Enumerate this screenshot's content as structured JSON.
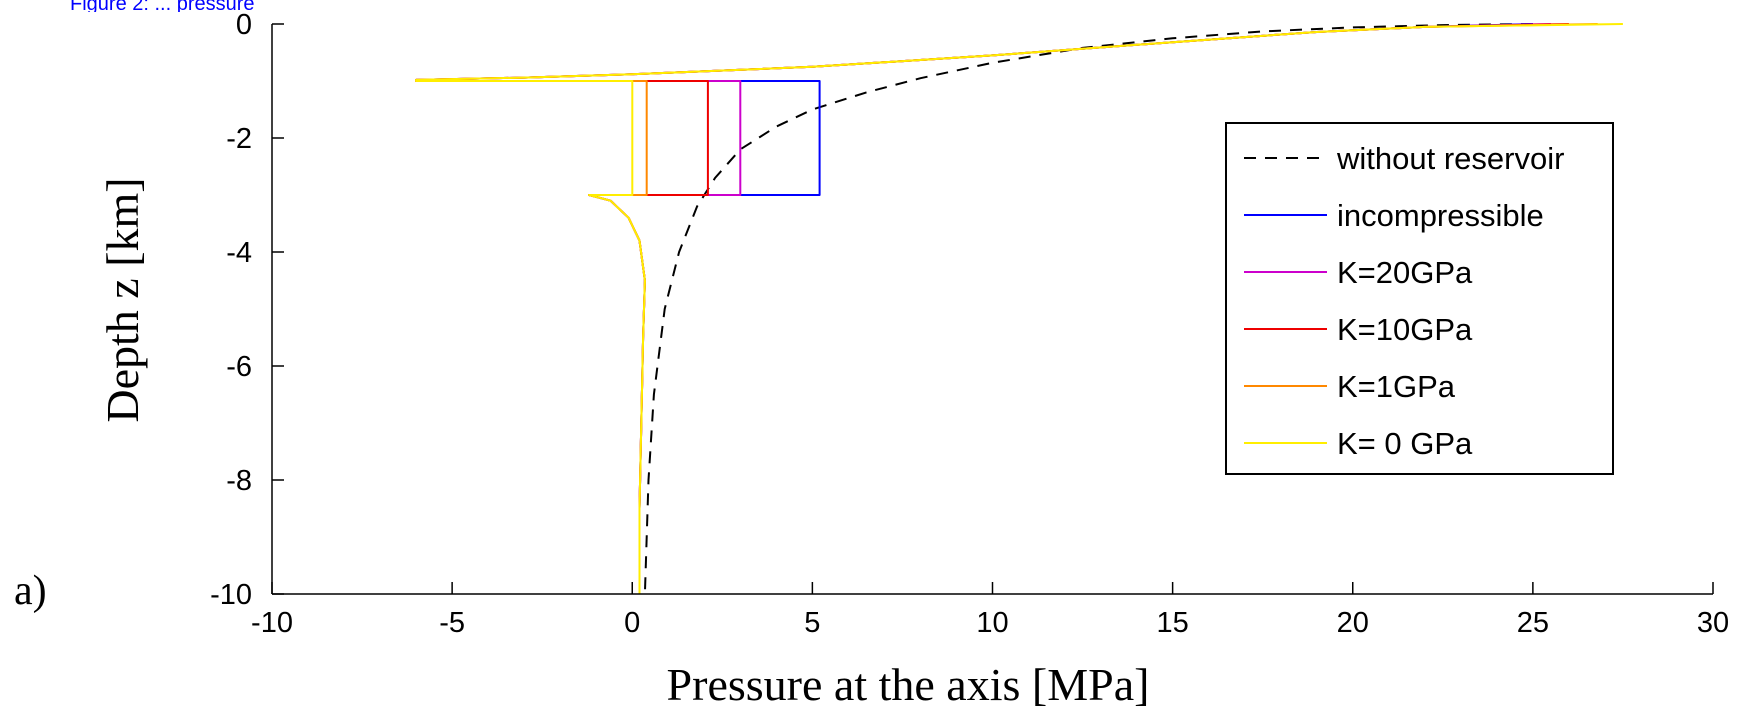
{
  "panel_label": "a)",
  "top_note": {
    "text": "Figure 2: ... pressure",
    "color": "#0000ff"
  },
  "chart_data": {
    "type": "line",
    "title": "",
    "xlabel": "Pressure at the axis [MPa]",
    "ylabel": "Depth z [km]",
    "xlim": [
      -10,
      30
    ],
    "ylim": [
      -10,
      0
    ],
    "xticks": [
      -10,
      -5,
      0,
      5,
      10,
      15,
      20,
      25,
      30
    ],
    "yticks": [
      0,
      -2,
      -4,
      -6,
      -8,
      -10
    ],
    "xtick_labels": [
      "-10",
      "-5",
      "0",
      "5",
      "10",
      "15",
      "20",
      "25",
      "30"
    ],
    "ytick_labels": [
      "0",
      "-2",
      "-4",
      "-6",
      "-8",
      "-10"
    ],
    "grid": false,
    "legend_position": "right",
    "series": [
      {
        "name": "without reservoir",
        "color": "#000000",
        "dash": true,
        "points": [
          [
            25.0,
            0
          ],
          [
            22.5,
            -0.02
          ],
          [
            20.0,
            -0.06
          ],
          [
            17.5,
            -0.13
          ],
          [
            15.0,
            -0.25
          ],
          [
            12.5,
            -0.42
          ],
          [
            10.0,
            -0.68
          ],
          [
            8.0,
            -0.95
          ],
          [
            6.5,
            -1.2
          ],
          [
            5.0,
            -1.5
          ],
          [
            4.0,
            -1.8
          ],
          [
            3.0,
            -2.2
          ],
          [
            2.3,
            -2.7
          ],
          [
            1.8,
            -3.2
          ],
          [
            1.3,
            -4.0
          ],
          [
            0.9,
            -5.0
          ],
          [
            0.6,
            -6.5
          ],
          [
            0.45,
            -8.0
          ],
          [
            0.35,
            -10.0
          ]
        ]
      },
      {
        "name": "incompressible",
        "color": "#0000ff",
        "dash": false,
        "points": [
          [
            25.0,
            0
          ],
          [
            22.0,
            -0.05
          ],
          [
            19.0,
            -0.14
          ],
          [
            15.0,
            -0.32
          ],
          [
            10.0,
            -0.55
          ],
          [
            5.0,
            -0.75
          ],
          [
            0.0,
            -0.88
          ],
          [
            -3.0,
            -0.94
          ],
          [
            -6.0,
            -0.98
          ],
          [
            -6.0,
            -1.0
          ],
          [
            5.2,
            -1.0
          ],
          [
            5.2,
            -3.0
          ],
          [
            -1.2,
            -3.0
          ],
          [
            -0.6,
            -3.1
          ],
          [
            -0.1,
            -3.4
          ],
          [
            0.2,
            -3.8
          ],
          [
            0.35,
            -4.5
          ],
          [
            0.3,
            -5.5
          ],
          [
            0.25,
            -7.0
          ],
          [
            0.2,
            -8.5
          ],
          [
            0.2,
            -10.0
          ]
        ]
      },
      {
        "name": "K=20GPa",
        "color": "#cc00cc",
        "dash": false,
        "points": [
          [
            25.5,
            0
          ],
          [
            22.0,
            -0.05
          ],
          [
            19.0,
            -0.14
          ],
          [
            15.0,
            -0.32
          ],
          [
            10.0,
            -0.55
          ],
          [
            5.0,
            -0.75
          ],
          [
            0.0,
            -0.88
          ],
          [
            -3.0,
            -0.94
          ],
          [
            -6.0,
            -0.98
          ],
          [
            -6.0,
            -1.0
          ],
          [
            3.0,
            -1.0
          ],
          [
            3.0,
            -3.0
          ],
          [
            -1.2,
            -3.0
          ],
          [
            -0.6,
            -3.1
          ],
          [
            -0.1,
            -3.4
          ],
          [
            0.2,
            -3.8
          ],
          [
            0.35,
            -4.5
          ],
          [
            0.3,
            -5.5
          ],
          [
            0.25,
            -7.0
          ],
          [
            0.2,
            -8.5
          ],
          [
            0.2,
            -10.0
          ]
        ]
      },
      {
        "name": "K=10GPa",
        "color": "#ee0000",
        "dash": false,
        "points": [
          [
            26.0,
            0
          ],
          [
            22.0,
            -0.05
          ],
          [
            19.0,
            -0.14
          ],
          [
            15.0,
            -0.32
          ],
          [
            10.0,
            -0.55
          ],
          [
            5.0,
            -0.75
          ],
          [
            0.0,
            -0.88
          ],
          [
            -3.0,
            -0.94
          ],
          [
            -6.0,
            -0.98
          ],
          [
            -6.0,
            -1.0
          ],
          [
            2.1,
            -1.0
          ],
          [
            2.1,
            -3.0
          ],
          [
            -1.2,
            -3.0
          ],
          [
            -0.6,
            -3.1
          ],
          [
            -0.1,
            -3.4
          ],
          [
            0.2,
            -3.8
          ],
          [
            0.35,
            -4.5
          ],
          [
            0.3,
            -5.5
          ],
          [
            0.25,
            -7.0
          ],
          [
            0.2,
            -8.5
          ],
          [
            0.2,
            -10.0
          ]
        ]
      },
      {
        "name": "K=1GPa",
        "color": "#ff8800",
        "dash": false,
        "points": [
          [
            26.8,
            0
          ],
          [
            22.0,
            -0.05
          ],
          [
            19.0,
            -0.14
          ],
          [
            15.0,
            -0.32
          ],
          [
            10.0,
            -0.55
          ],
          [
            5.0,
            -0.75
          ],
          [
            0.0,
            -0.88
          ],
          [
            -3.0,
            -0.94
          ],
          [
            -6.0,
            -0.98
          ],
          [
            -6.0,
            -1.0
          ],
          [
            0.4,
            -1.0
          ],
          [
            0.4,
            -3.0
          ],
          [
            -1.2,
            -3.0
          ],
          [
            -0.6,
            -3.1
          ],
          [
            -0.1,
            -3.4
          ],
          [
            0.2,
            -3.8
          ],
          [
            0.35,
            -4.5
          ],
          [
            0.3,
            -5.5
          ],
          [
            0.25,
            -7.0
          ],
          [
            0.2,
            -8.5
          ],
          [
            0.2,
            -10.0
          ]
        ]
      },
      {
        "name": "K= 0 GPa",
        "color": "#ffee00",
        "dash": false,
        "points": [
          [
            27.5,
            0
          ],
          [
            22.0,
            -0.05
          ],
          [
            19.0,
            -0.14
          ],
          [
            15.0,
            -0.32
          ],
          [
            10.0,
            -0.55
          ],
          [
            5.0,
            -0.75
          ],
          [
            0.0,
            -0.88
          ],
          [
            -3.0,
            -0.94
          ],
          [
            -6.0,
            -0.98
          ],
          [
            -6.0,
            -1.0
          ],
          [
            0.0,
            -1.0
          ],
          [
            0.0,
            -3.0
          ],
          [
            -1.2,
            -3.0
          ],
          [
            -0.6,
            -3.1
          ],
          [
            -0.1,
            -3.4
          ],
          [
            0.2,
            -3.8
          ],
          [
            0.35,
            -4.5
          ],
          [
            0.3,
            -5.5
          ],
          [
            0.25,
            -7.0
          ],
          [
            0.2,
            -8.5
          ],
          [
            0.2,
            -10.0
          ]
        ]
      }
    ]
  }
}
